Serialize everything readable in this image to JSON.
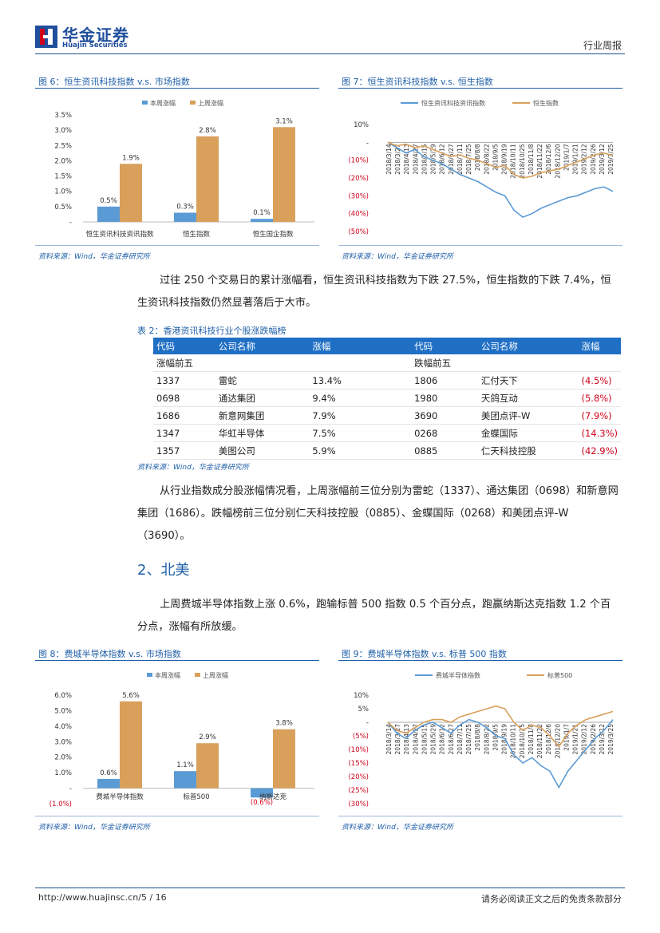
{
  "header": {
    "logo_cn": "华金证券",
    "logo_en": "Huajin Securities",
    "report_type": "行业周报"
  },
  "figures": {
    "fig6": {
      "title": "图 6：恒生资讯科技指数 v.s. 市场指数",
      "source": "资料来源：Wind，华金证券研究所",
      "chart_data": {
        "type": "bar",
        "categories": [
          "恒生资讯科技资讯指数",
          "恒生指数",
          "恒生国企指数"
        ],
        "series": [
          {
            "name": "本周涨幅",
            "values": [
              0.5,
              0.3,
              0.1
            ],
            "labels": [
              "0.5%",
              "0.3%",
              "0.1%"
            ],
            "color": "#5b9bd5"
          },
          {
            "name": "上周涨幅",
            "values": [
              1.9,
              2.8,
              3.1
            ],
            "labels": [
              "1.9%",
              "2.8%",
              "3.1%"
            ],
            "color": "#d9a05b"
          }
        ],
        "yticks": [
          "3.5%",
          "3.0%",
          "2.5%",
          "2.0%",
          "1.5%",
          "1.0%",
          "0.5%",
          "-"
        ],
        "ylim": [
          0,
          3.5
        ]
      }
    },
    "fig7": {
      "title": "图 7：恒生资讯科技指数 v.s. 恒生指数",
      "source": "资料来源：Wind，华金证券研究所",
      "chart_data": {
        "type": "line",
        "series_names": [
          "恒生资讯科技资讯指数",
          "恒生指数"
        ],
        "colors": [
          "#5b9bd5",
          "#d9a05b"
        ],
        "yticks": [
          "10%",
          "-",
          "(10%)",
          "(20%)",
          "(30%)",
          "(40%)",
          "(50%)"
        ],
        "ylim": [
          -50,
          10
        ],
        "xticks": [
          "2018/3/14",
          "2018/3/27",
          "2018/4/13",
          "2018/4/27",
          "2018/5/15",
          "2018/5/29",
          "2018/6/12",
          "2018/6/27",
          "2018/7/11",
          "2018/7/25",
          "2018/8/8",
          "2018/8/22",
          "2018/9/5",
          "2018/9/19",
          "2018/10/11",
          "2018/10/25",
          "2018/11/8",
          "2018/11/22",
          "2018/12/6",
          "2018/12/20",
          "2019/1/7",
          "2019/1/21",
          "2019/2/12",
          "2019/2/26",
          "2019/3/12",
          "2019/3/25"
        ],
        "series": [
          {
            "name": "恒生资讯科技资讯指数",
            "values": [
              0,
              -3,
              -6,
              -4,
              -8,
              -10,
              -12,
              -15,
              -18,
              -20,
              -22,
              -25,
              -28,
              -30,
              -38,
              -42,
              -40,
              -37,
              -35,
              -33,
              -31,
              -30,
              -28,
              -26,
              -25,
              -27.5
            ]
          },
          {
            "name": "恒生指数",
            "values": [
              0,
              -2,
              -1,
              -3,
              -2,
              -4,
              -6,
              -8,
              -7,
              -9,
              -10,
              -12,
              -14,
              -13,
              -18,
              -20,
              -19,
              -17,
              -16,
              -15,
              -13,
              -11,
              -9,
              -7,
              -6,
              -7.4
            ]
          }
        ]
      }
    },
    "fig8": {
      "title": "图 8：费城半导体指数 v.s. 市场指数",
      "source": "资料来源：Wind，华金证券研究所",
      "chart_data": {
        "type": "bar",
        "categories": [
          "费城半导体指数",
          "标普500",
          "纳斯达克"
        ],
        "series": [
          {
            "name": "本周涨幅",
            "values": [
              0.6,
              1.1,
              -0.6
            ],
            "labels": [
              "0.6%",
              "1.1%",
              "(0.6%)"
            ],
            "color": "#5b9bd5"
          },
          {
            "name": "上周涨幅",
            "values": [
              5.6,
              2.9,
              3.8
            ],
            "labels": [
              "5.6%",
              "2.9%",
              "3.8%"
            ],
            "color": "#d9a05b"
          }
        ],
        "yticks": [
          "6.0%",
          "5.0%",
          "4.0%",
          "3.0%",
          "2.0%",
          "1.0%",
          "-",
          "(1.0%)"
        ],
        "ylim": [
          -1,
          6
        ]
      }
    },
    "fig9": {
      "title": "图 9：费城半导体指数 v.s. 标普 500 指数",
      "source": "资料来源：Wind，华金证券研究所",
      "chart_data": {
        "type": "line",
        "series_names": [
          "费城半导体指数",
          "标普500"
        ],
        "colors": [
          "#5b9bd5",
          "#d9a05b"
        ],
        "yticks": [
          "10%",
          "5%",
          "-",
          "(5%)",
          "(10%)",
          "(15%)",
          "(20%)",
          "(25%)",
          "(30%)"
        ],
        "ylim": [
          -30,
          10
        ],
        "xticks": [
          "2018/3/14",
          "2018/3/27",
          "2018/4/13",
          "2018/4/27",
          "2018/5/15",
          "2018/5/29",
          "2018/6/12",
          "2018/6/27",
          "2018/7/11",
          "2018/7/25",
          "2018/8/8",
          "2018/8/22",
          "2018/9/5",
          "2018/9/19",
          "2018/10/11",
          "2018/10/25",
          "2018/11/8",
          "2018/11/22",
          "2018/12/6",
          "2018/12/20",
          "2019/1/7",
          "2019/1/21",
          "2019/2/12",
          "2019/2/26",
          "2019/3/12",
          "2019/3/25"
        ],
        "series": [
          {
            "name": "费城半导体指数",
            "values": [
              0,
              -4,
              -6,
              -3,
              -1,
              0,
              -2,
              -4,
              -1,
              1,
              0,
              -2,
              -5,
              -6,
              -12,
              -15,
              -13,
              -16,
              -18,
              -24,
              -18,
              -14,
              -10,
              -6,
              -3,
              1
            ]
          },
          {
            "name": "标普500",
            "values": [
              0,
              -3,
              -4,
              -2,
              0,
              1,
              1,
              0,
              2,
              3,
              4,
              5,
              6,
              5,
              0,
              -3,
              -1,
              -2,
              -5,
              -9,
              -4,
              -1,
              1,
              2,
              3,
              4
            ]
          }
        ]
      }
    }
  },
  "paragraphs": {
    "p1": "过往 250 个交易日的累计涨幅看，恒生资讯科技指数为下跌 27.5%，恒生指数的下跌 7.4%，恒生资讯科技指数仍然显著落后于大市。",
    "p2": "从行业指数成分股涨幅情况看，上周涨幅前三位分别为雷蛇（1337）、通达集团（0698）和新意网集团（1686）。跌幅榜前三位分别仁天科技控股（0885）、金蝶国际（0268）和美团点评-W（3690）。",
    "p3": "上周费城半导体指数上涨 0.6%，跑输标普 500 指数 0.5 个百分点，跑赢纳斯达克指数 1.2 个百分点，涨幅有所放缓。"
  },
  "section": {
    "heading": "2、北美"
  },
  "table2": {
    "title": "表 2：香港资讯科技行业个股涨跌幅榜",
    "headers": [
      "代码",
      "公司名称",
      "涨幅",
      "代码",
      "公司名称",
      "涨幅"
    ],
    "group_left": "涨幅前五",
    "group_right": "跌幅前五",
    "rows": [
      {
        "code1": "1337",
        "name1": "雷蛇",
        "chg1": "13.4%",
        "code2": "1806",
        "name2": "汇付天下",
        "chg2": "(4.5%)"
      },
      {
        "code1": "0698",
        "name1": "通达集团",
        "chg1": "9.4%",
        "code2": "1980",
        "name2": "天鸽互动",
        "chg2": "(5.8%)"
      },
      {
        "code1": "1686",
        "name1": "新意网集团",
        "chg1": "7.9%",
        "code2": "3690",
        "name2": "美团点评-W",
        "chg2": "(7.9%)"
      },
      {
        "code1": "1347",
        "name1": "华虹半导体",
        "chg1": "7.5%",
        "code2": "0268",
        "name2": "金蝶国际",
        "chg2": "(14.3%)"
      },
      {
        "code1": "1357",
        "name1": "美图公司",
        "chg1": "5.9%",
        "code2": "0885",
        "name2": "仁天科技控股",
        "chg2": "(42.9%)"
      }
    ],
    "source": "资料来源：Wind，华金证券研究所"
  },
  "footer": {
    "url": "http://www.huajinsc.cn/",
    "page": "5 / 16",
    "disclaimer": "请务必阅读正文之后的免责条款部分"
  }
}
